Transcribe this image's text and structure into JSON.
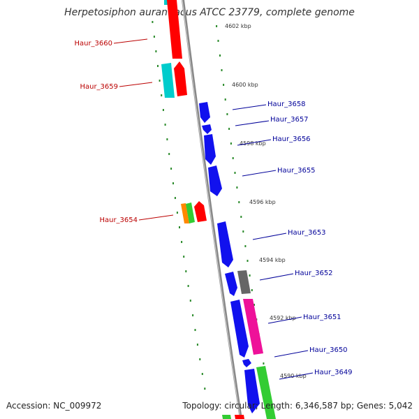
{
  "title": "Herpetosiphon aurantiacus ATCC 23779, complete genome",
  "accession": "Accession: NC_009972",
  "summary": "Topology: circular; Length: 6,346,587 bp; Genes: 5,042",
  "colors": {
    "backbone": "#888888",
    "ruler": "#2a8a2a",
    "left_label": "#bb0000",
    "right_label": "#000099",
    "red": "#ff0000",
    "cyan": "#00cccc",
    "blue": "#1111ee",
    "orange": "#ff8800",
    "green": "#33cc33",
    "gray": "#666666",
    "magenta": "#ee1199"
  },
  "ruler_ticks": [
    "4602 kbp",
    "4600 kbp",
    "4598 kbp",
    "4596 kbp",
    "4594 kbp",
    "4592 kbp",
    "4590 kbp"
  ],
  "genes_left": [
    "Haur_3660",
    "Haur_3659",
    "Haur_3654"
  ],
  "genes_right": [
    "Haur_3658",
    "Haur_3657",
    "Haur_3656",
    "Haur_3655",
    "Haur_3653",
    "Haur_3652",
    "Haur_3651",
    "Haur_3650",
    "Haur_3649"
  ]
}
